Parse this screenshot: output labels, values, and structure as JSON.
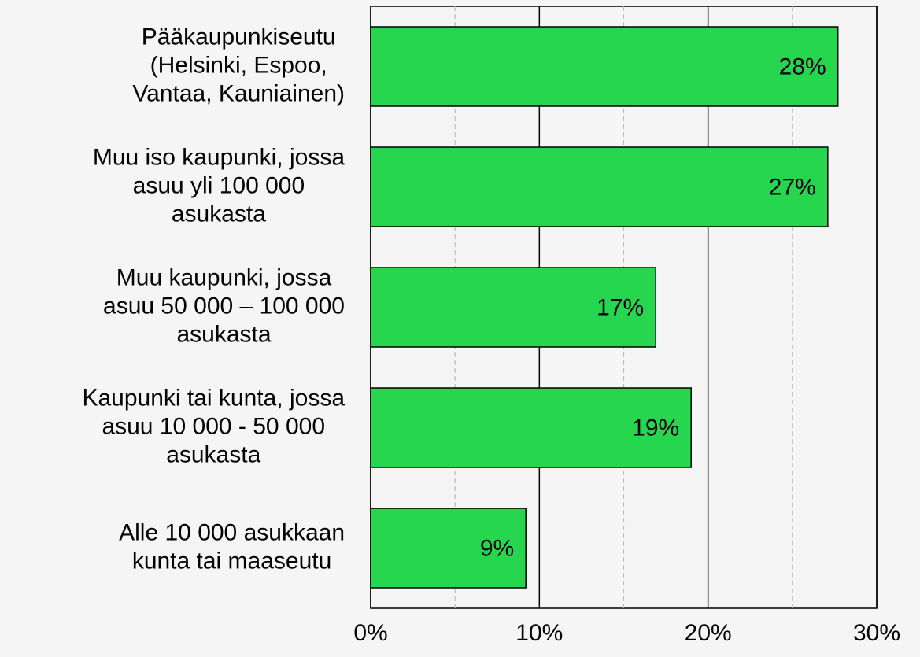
{
  "chart_data": {
    "type": "bar",
    "orientation": "horizontal",
    "categories": [
      "Pääkaupunkiseutu\n(Helsinki, Espoo,\nVantaa, Kauniainen)",
      "Muu iso kaupunki, jossa\nasuu yli 100 000\nasukasta",
      "Muu kaupunki, jossa\nasuu 50 000 – 100 000\nasukasta",
      "Kaupunki tai kunta, jossa\nasuu 10 000 -  50 000\nasukasta",
      "Alle 10 000 asukkaan\nkunta tai maaseutu"
    ],
    "values": [
      27.7,
      27.1,
      16.9,
      19.0,
      9.2
    ],
    "value_labels": [
      "28%",
      "27%",
      "17%",
      "19%",
      "9%"
    ],
    "color": "#26d64e",
    "xlim": [
      0,
      30
    ],
    "xticks": [
      {
        "value": 0,
        "label": "0%"
      },
      {
        "value": 10,
        "label": "10%"
      },
      {
        "value": 20,
        "label": "20%"
      },
      {
        "value": 30,
        "label": "30%"
      }
    ],
    "minor_xticks": [
      5,
      15,
      25
    ],
    "grid": true
  }
}
